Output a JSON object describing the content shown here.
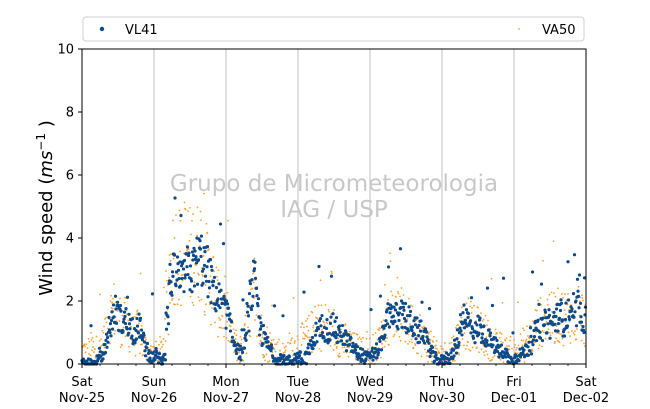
{
  "chart_data": {
    "type": "scatter",
    "title": "",
    "xlabel": "",
    "ylabel_prefix": "Wind speed (",
    "ylabel_unit": "ms",
    "ylabel_exp": "−1",
    "ylabel_suffix": " )",
    "ylim": [
      0,
      10
    ],
    "y_ticks": [
      "0",
      "2",
      "4",
      "6",
      "8",
      "10"
    ],
    "x_range_days": [
      "2023-11-25",
      "2023-12-02"
    ],
    "x_ticks": [
      {
        "day": "Sat",
        "date": "Nov-25"
      },
      {
        "day": "Sun",
        "date": "Nov-26"
      },
      {
        "day": "Mon",
        "date": "Nov-27"
      },
      {
        "day": "Tue",
        "date": "Nov-28"
      },
      {
        "day": "Wed",
        "date": "Nov-29"
      },
      {
        "day": "Thu",
        "date": "Nov-30"
      },
      {
        "day": "Fri",
        "date": "Dec-01"
      },
      {
        "day": "Sat",
        "date": "Dec-02"
      }
    ],
    "grid": "vertical lines at midnight",
    "legend": "top, outside plot",
    "watermark": [
      "Grupo de Micrometeorologia",
      "IAG / USP"
    ],
    "series": [
      {
        "name": "VL41",
        "color": "#0d4a8a",
        "marker": "circle",
        "hourly_mean": [
          0.0,
          0.0,
          0.0,
          0.0,
          0.0,
          0.1,
          0.2,
          0.4,
          0.8,
          1.2,
          1.5,
          1.7,
          1.5,
          1.3,
          1.4,
          1.3,
          1.2,
          1.0,
          1.1,
          1.2,
          0.7,
          0.5,
          0.3,
          0.2,
          0.3,
          0.2,
          0.1,
          0.3,
          1.5,
          2.6,
          2.8,
          2.9,
          2.7,
          2.6,
          2.9,
          3.0,
          2.9,
          3.1,
          3.3,
          3.4,
          3.2,
          3.0,
          2.8,
          2.5,
          2.2,
          2.1,
          1.9,
          1.7,
          1.6,
          1.2,
          0.8,
          0.6,
          0.4,
          0.3,
          0.8,
          1.5,
          2.2,
          2.6,
          1.9,
          1.2,
          0.9,
          0.7,
          0.5,
          0.3,
          0.2,
          0.1,
          0.2,
          0.1,
          0.1,
          0.1,
          0.1,
          0.2,
          0.2,
          0.1,
          0.2,
          0.4,
          0.6,
          0.8,
          1.0,
          1.1,
          1.2,
          1.1,
          1.0,
          1.2,
          1.1,
          0.9,
          1.0,
          0.8,
          0.7,
          0.6,
          0.5,
          0.4,
          0.3,
          0.3,
          0.2,
          0.2,
          0.3,
          0.3,
          0.4,
          0.6,
          0.9,
          1.3,
          1.6,
          1.7,
          1.5,
          1.4,
          1.6,
          1.5,
          1.3,
          1.4,
          1.2,
          1.1,
          1.0,
          1.1,
          0.8,
          0.6,
          0.4,
          0.2,
          0.1,
          0.1,
          0.1,
          0.2,
          0.2,
          0.3,
          0.5,
          0.8,
          1.3,
          1.6,
          1.4,
          1.2,
          1.1,
          1.0,
          1.2,
          1.0,
          0.9,
          0.8,
          0.7,
          0.6,
          0.5,
          0.4,
          0.3,
          0.3,
          0.2,
          0.1,
          0.2,
          0.3,
          0.3,
          0.4,
          0.5,
          0.6,
          0.8,
          1.0,
          1.2,
          1.1,
          1.3,
          1.4,
          1.2,
          1.4,
          1.5,
          1.6,
          1.3,
          1.5,
          1.7,
          1.4,
          1.6,
          1.8,
          1.5,
          1.4
        ]
      },
      {
        "name": "VA50",
        "color": "#ff9f2f",
        "marker": "point",
        "hourly_mean": [
          0.4,
          0.3,
          0.4,
          0.5,
          0.3,
          0.4,
          0.6,
          0.8,
          1.2,
          1.6,
          1.7,
          1.6,
          1.4,
          1.2,
          1.3,
          1.1,
          1.0,
          0.9,
          1.0,
          0.9,
          0.6,
          0.5,
          0.4,
          0.3,
          0.3,
          0.3,
          0.4,
          0.8,
          2.0,
          3.0,
          3.4,
          3.6,
          3.5,
          3.3,
          3.6,
          3.7,
          3.4,
          3.6,
          3.5,
          3.7,
          3.2,
          3.0,
          2.8,
          2.5,
          2.2,
          1.9,
          1.7,
          1.6,
          1.4,
          1.0,
          0.8,
          0.6,
          0.5,
          0.5,
          0.9,
          1.4,
          1.9,
          2.0,
          1.5,
          1.0,
          0.8,
          0.7,
          0.6,
          0.5,
          0.4,
          0.4,
          0.3,
          0.3,
          0.4,
          0.5,
          0.5,
          0.6,
          0.6,
          0.7,
          0.8,
          0.9,
          1.0,
          1.1,
          1.2,
          1.2,
          1.1,
          1.2,
          1.2,
          1.0,
          1.1,
          0.9,
          0.8,
          0.7,
          0.6,
          0.6,
          0.5,
          0.5,
          0.4,
          0.4,
          0.4,
          0.3,
          0.4,
          0.5,
          0.6,
          0.8,
          1.0,
          1.3,
          1.5,
          1.6,
          1.5,
          1.5,
          1.5,
          1.4,
          1.3,
          1.3,
          1.2,
          1.1,
          1.0,
          0.9,
          0.7,
          0.6,
          0.5,
          0.4,
          0.3,
          0.3,
          0.3,
          0.3,
          0.4,
          0.5,
          0.7,
          0.9,
          1.2,
          1.4,
          1.3,
          1.2,
          1.1,
          1.1,
          1.1,
          1.0,
          0.9,
          0.8,
          0.7,
          0.6,
          0.5,
          0.5,
          0.4,
          0.4,
          0.4,
          0.3,
          0.4,
          0.5,
          0.5,
          0.6,
          0.7,
          0.8,
          0.9,
          1.1,
          1.3,
          1.4,
          1.5,
          1.6,
          1.4,
          1.5,
          1.5,
          1.6,
          1.5,
          1.5,
          1.6,
          1.4,
          1.5,
          1.6,
          1.5,
          1.4
        ]
      }
    ]
  }
}
